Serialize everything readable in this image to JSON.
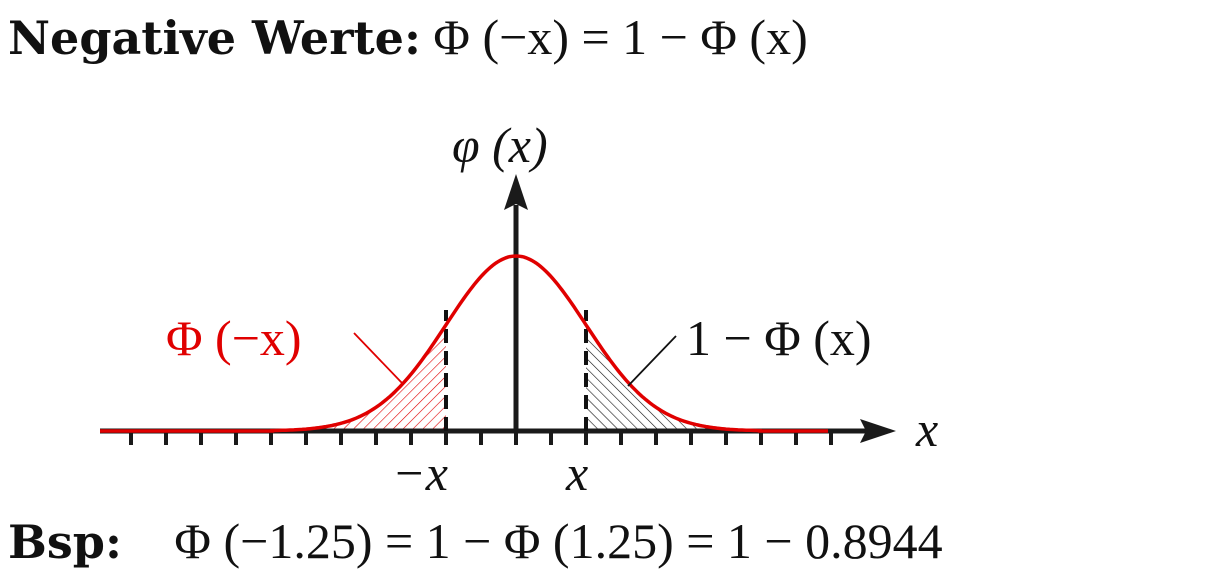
{
  "heading": {
    "label": "Negative Werte:",
    "formula": "Φ (−x) = 1 − Φ (x)"
  },
  "diagram": {
    "y_axis_label": "φ (x)",
    "x_axis_label": "x",
    "neg_x_tick_label": "−x",
    "pos_x_tick_label": "x",
    "left_area_label": "Φ (−x)",
    "right_area_label": "1 − Φ (x)",
    "curve_color": "#e00000",
    "axis_color": "#1a1a1a"
  },
  "example": {
    "label": "Bsp:",
    "formula": "Φ (−1.25) = 1 − Φ (1.25) = 1 − 0.8944"
  }
}
